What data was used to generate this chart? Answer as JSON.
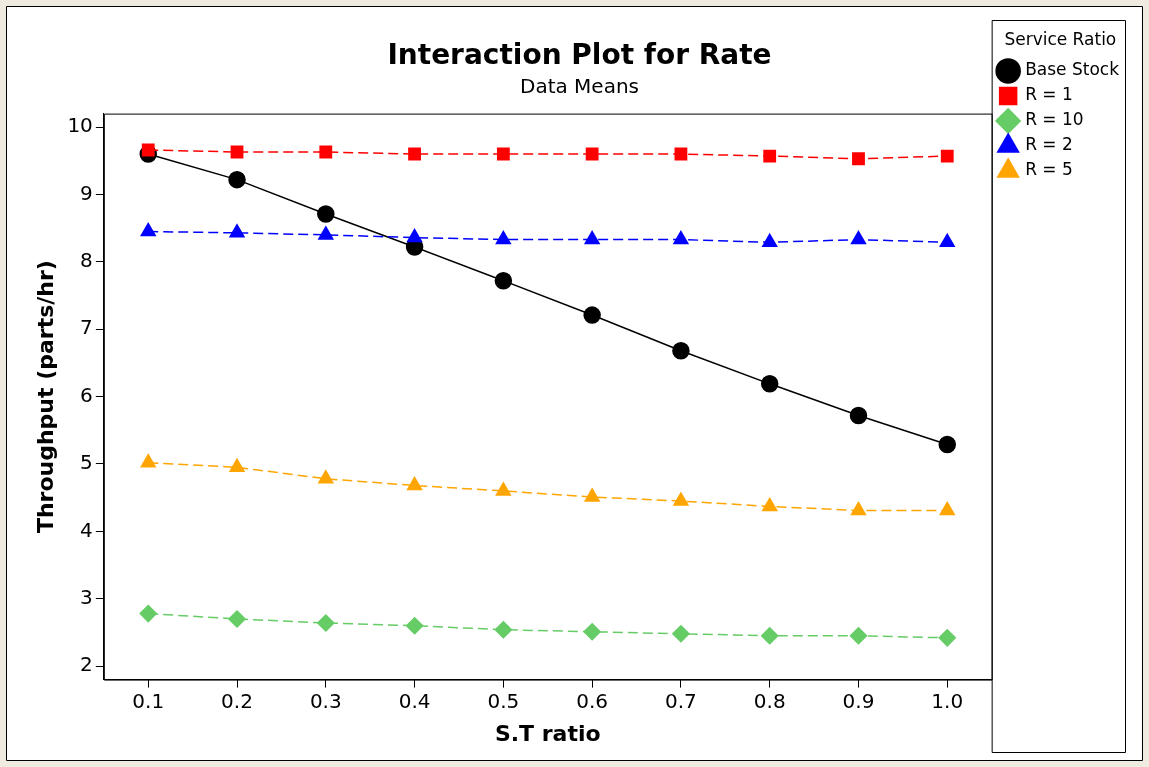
{
  "chart_data": {
    "type": "line",
    "title": "Interaction Plot for Rate",
    "subtitle": "Data Means",
    "xlabel": "S.T ratio",
    "ylabel": "Throughput (parts/hr)",
    "legend_title": "Service Ratio",
    "legend": "right",
    "grid": false,
    "categories": [
      "0.1",
      "0.2",
      "0.3",
      "0.4",
      "0.5",
      "0.6",
      "0.7",
      "0.8",
      "0.9",
      "1.0"
    ],
    "ylim": [
      1.8,
      10.2
    ],
    "yticks": [
      2,
      3,
      4,
      5,
      6,
      7,
      8,
      9,
      10
    ],
    "series": [
      {
        "name": "Base Stock",
        "color": "#000000",
        "marker": "circle",
        "line_style": "solid",
        "values": [
          9.6,
          9.22,
          8.71,
          8.22,
          7.72,
          7.21,
          6.68,
          6.19,
          5.72,
          5.29
        ]
      },
      {
        "name": "R = 1",
        "color": "#ff0000",
        "marker": "square",
        "line_style": "dashed",
        "values": [
          9.66,
          9.63,
          9.63,
          9.6,
          9.6,
          9.6,
          9.6,
          9.57,
          9.53,
          9.57
        ]
      },
      {
        "name": "R = 10",
        "color": "#66cc66",
        "marker": "diamond",
        "line_style": "dashed",
        "values": [
          2.78,
          2.7,
          2.64,
          2.6,
          2.54,
          2.51,
          2.48,
          2.45,
          2.45,
          2.42
        ]
      },
      {
        "name": "R = 2",
        "color": "#0000ff",
        "marker": "triangle",
        "line_style": "dashed",
        "values": [
          8.45,
          8.43,
          8.4,
          8.36,
          8.33,
          8.33,
          8.33,
          8.29,
          8.33,
          8.29
        ]
      },
      {
        "name": "R = 5",
        "color": "#ffa500",
        "marker": "triangle",
        "line_style": "dashed",
        "values": [
          5.02,
          4.95,
          4.78,
          4.68,
          4.6,
          4.51,
          4.45,
          4.37,
          4.31,
          4.31
        ]
      }
    ]
  }
}
